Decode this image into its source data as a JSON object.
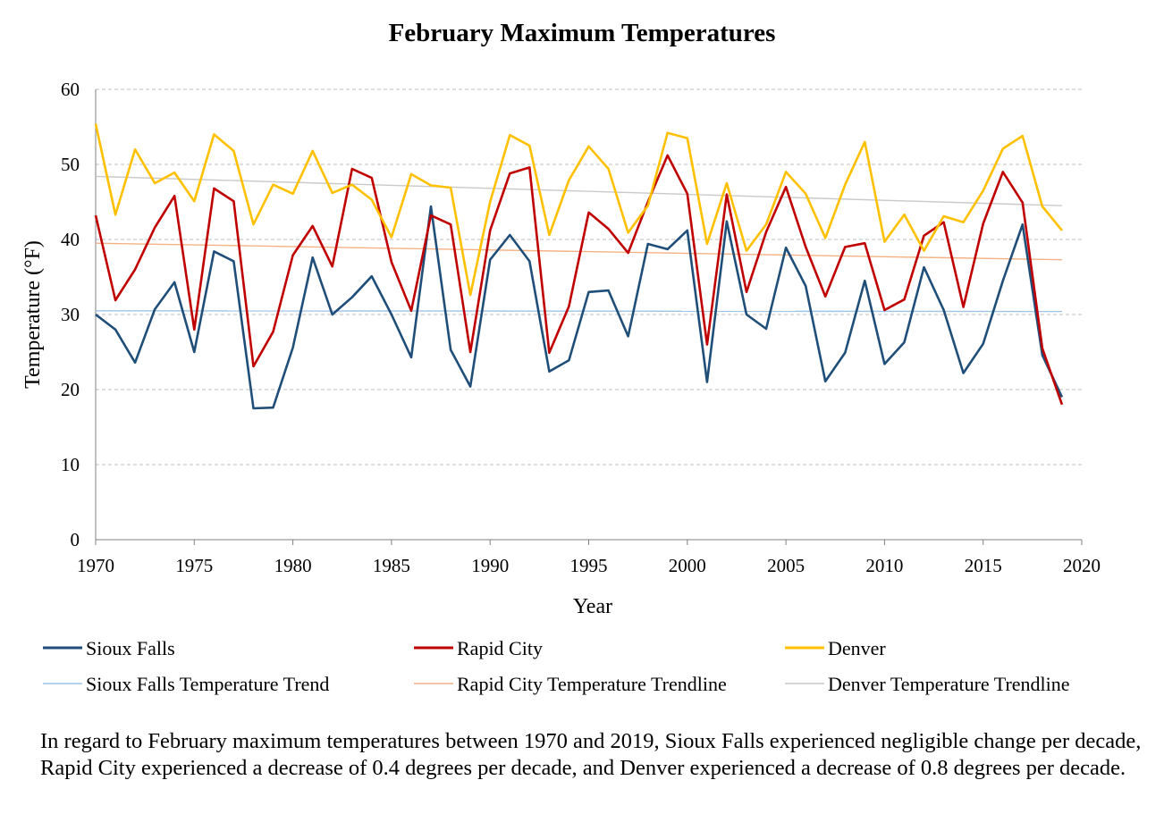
{
  "chart_data": {
    "type": "line",
    "title": "February Maximum Temperatures",
    "xlabel": "Year",
    "ylabel": "Temperature (°F)",
    "xlim": [
      1970,
      2020
    ],
    "ylim": [
      0,
      60
    ],
    "x_ticks": [
      1970,
      1975,
      1980,
      1985,
      1990,
      1995,
      2000,
      2005,
      2010,
      2015,
      2020
    ],
    "y_ticks": [
      0,
      10,
      20,
      30,
      40,
      50,
      60
    ],
    "grid": "horizontal-dashed",
    "legend_position": "bottom",
    "x": [
      1970,
      1971,
      1972,
      1973,
      1974,
      1975,
      1976,
      1977,
      1978,
      1979,
      1980,
      1981,
      1982,
      1983,
      1984,
      1985,
      1986,
      1987,
      1988,
      1989,
      1990,
      1991,
      1992,
      1993,
      1994,
      1995,
      1996,
      1997,
      1998,
      1999,
      2000,
      2001,
      2002,
      2003,
      2004,
      2005,
      2006,
      2007,
      2008,
      2009,
      2010,
      2011,
      2012,
      2013,
      2014,
      2015,
      2016,
      2017,
      2018,
      2019
    ],
    "series": [
      {
        "name": "Sioux Falls",
        "color": "#1f4e79",
        "values": [
          30.0,
          28.0,
          23.6,
          30.7,
          34.3,
          25.0,
          38.4,
          37.1,
          17.5,
          17.6,
          25.6,
          37.6,
          30.0,
          32.3,
          35.1,
          30.0,
          24.3,
          44.4,
          25.3,
          20.4,
          37.3,
          40.6,
          37.1,
          22.4,
          23.9,
          33.0,
          33.2,
          27.1,
          39.4,
          38.7,
          41.2,
          21.0,
          42.4,
          30.0,
          28.1,
          38.9,
          33.8,
          21.1,
          24.9,
          34.5,
          23.4,
          26.3,
          36.3,
          30.6,
          22.2,
          26.1,
          34.5,
          42.0,
          24.6,
          19.0
        ]
      },
      {
        "name": "Rapid City",
        "color": "#c00000",
        "values": [
          43.2,
          31.9,
          36.0,
          41.6,
          45.8,
          28.0,
          46.8,
          45.1,
          23.1,
          27.7,
          37.9,
          41.8,
          36.4,
          49.4,
          48.2,
          37.0,
          30.5,
          43.2,
          42.0,
          25.0,
          41.2,
          48.8,
          49.6,
          24.9,
          31.1,
          43.6,
          41.4,
          38.2,
          45.0,
          51.2,
          46.1,
          26.0,
          46.0,
          33.0,
          41.0,
          47.0,
          39.0,
          32.4,
          39.0,
          39.5,
          30.6,
          32.0,
          40.5,
          42.3,
          31.0,
          42.1,
          49.0,
          44.9,
          25.5,
          18.0
        ]
      },
      {
        "name": "Denver",
        "color": "#ffc000",
        "values": [
          55.4,
          43.3,
          52.0,
          47.5,
          48.9,
          45.1,
          54.0,
          51.8,
          42.0,
          47.3,
          46.1,
          51.8,
          46.2,
          47.3,
          45.3,
          40.3,
          48.7,
          47.2,
          46.9,
          32.6,
          45.0,
          53.9,
          52.5,
          40.6,
          47.9,
          52.4,
          49.4,
          40.9,
          44.5,
          54.2,
          53.5,
          39.4,
          47.5,
          38.5,
          42.0,
          49.0,
          46.1,
          40.2,
          47.3,
          53.0,
          39.7,
          43.3,
          38.5,
          43.1,
          42.3,
          46.5,
          52.1,
          53.8,
          44.4,
          41.2
        ]
      },
      {
        "name": "Sioux Falls Temperature Trend",
        "color": "#9dc3e6",
        "trend": true,
        "x": [
          1970,
          2019
        ],
        "values": [
          30.5,
          30.4
        ]
      },
      {
        "name": "Rapid City Temperature Trendline",
        "color": "#f4b183",
        "trend": true,
        "x": [
          1970,
          2019
        ],
        "values": [
          39.5,
          37.3
        ]
      },
      {
        "name": "Denver Temperature Trendline",
        "color": "#c9c9c9",
        "trend": true,
        "x": [
          1970,
          2019
        ],
        "values": [
          48.4,
          44.5
        ]
      }
    ]
  },
  "caption": "In regard to February maximum temperatures between 1970 and 2019, Sioux Falls experienced negligible change per decade, Rapid City experienced a decrease of 0.4 degrees per decade, and Denver experienced a decrease of 0.8 degrees per decade."
}
